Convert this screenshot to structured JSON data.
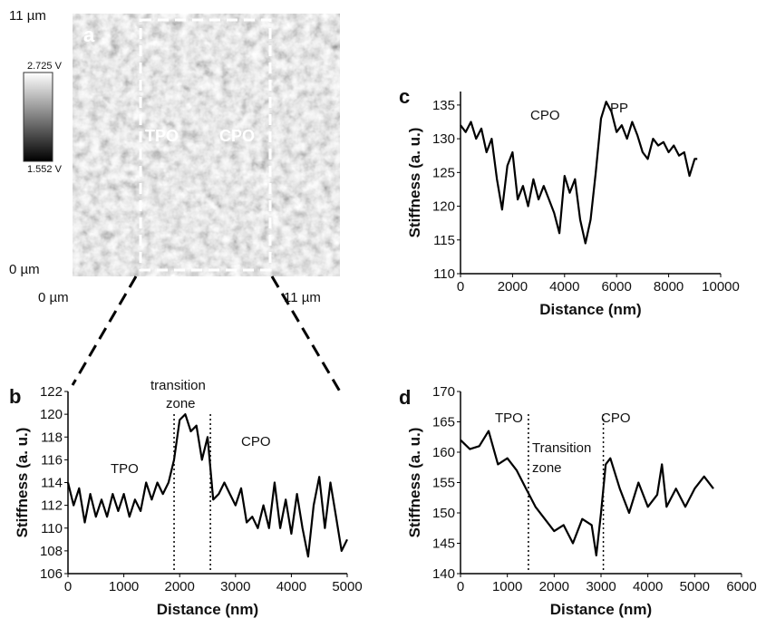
{
  "image_panel": {
    "label": "a",
    "y_top": "11 µm",
    "y_bottom": "0 µm",
    "x_left": "0 µm",
    "x_right": "11 µm",
    "colorbar_max": "2.725 V",
    "colorbar_min": "1.552 V",
    "regions": [
      "TPO",
      "CPO"
    ]
  },
  "chart_data": [
    {
      "type": "line",
      "panel": "b",
      "xlabel": "Distance (nm)",
      "ylabel": "Stiffness (a. u.)",
      "x": [
        0,
        100,
        200,
        300,
        400,
        500,
        600,
        700,
        800,
        900,
        1000,
        1100,
        1200,
        1300,
        1400,
        1500,
        1600,
        1700,
        1800,
        1900,
        2000,
        2100,
        2200,
        2300,
        2400,
        2500,
        2600,
        2700,
        2800,
        2900,
        3000,
        3100,
        3200,
        3300,
        3400,
        3500,
        3600,
        3700,
        3800,
        3900,
        4000,
        4100,
        4200,
        4300,
        4400,
        4500,
        4600,
        4700,
        4800,
        4900,
        5000
      ],
      "series": [
        {
          "color": "#000000",
          "values": [
            114,
            112,
            113.5,
            110.5,
            113,
            111,
            112.5,
            111,
            113,
            111.5,
            113,
            111,
            112.5,
            111.5,
            114,
            112.5,
            114,
            113,
            114,
            116,
            119.5,
            120,
            118.5,
            119,
            116,
            118,
            112.5,
            113,
            114,
            113,
            112,
            113.5,
            110.5,
            111,
            110,
            112,
            110,
            114,
            110,
            112.5,
            109.5,
            113,
            110,
            107.5,
            112,
            114.5,
            110,
            114,
            111,
            108,
            109
          ]
        }
      ],
      "vlines": [
        1900,
        2550
      ],
      "annotations": [
        "transition",
        "zone",
        "TPO",
        "CPO"
      ],
      "xlim": [
        0,
        5000
      ],
      "xticks": [
        0,
        1000,
        2000,
        3000,
        4000,
        5000
      ],
      "ylim": [
        106,
        122
      ],
      "yticks": [
        106,
        108,
        110,
        112,
        114,
        116,
        118,
        120,
        122
      ]
    },
    {
      "type": "line",
      "panel": "c",
      "xlabel": "Distance (nm)",
      "ylabel": "Stiffness (a. u.)",
      "x": [
        0,
        200,
        400,
        600,
        800,
        1000,
        1200,
        1400,
        1600,
        1800,
        2000,
        2200,
        2400,
        2600,
        2800,
        3000,
        3200,
        3400,
        3600,
        3800,
        4000,
        4200,
        4400,
        4600,
        4800,
        5000,
        5200,
        5400,
        5600,
        5800,
        6000,
        6200,
        6400,
        6600,
        6800,
        7000,
        7200,
        7400,
        7600,
        7800,
        8000,
        8200,
        8400,
        8600,
        8800,
        9000,
        9100
      ],
      "series": [
        {
          "color": "#000000",
          "values": [
            132,
            131,
            132.5,
            130,
            131.5,
            128,
            130,
            124,
            119.5,
            126,
            128,
            121,
            123,
            120,
            124,
            121,
            123,
            121,
            119,
            116,
            124.5,
            122,
            124,
            118,
            114.5,
            118,
            125,
            133,
            135.5,
            134,
            131,
            132,
            130,
            132.5,
            130.5,
            128,
            127,
            130,
            129,
            129.5,
            128,
            129,
            127.5,
            128,
            124.5,
            127,
            127
          ]
        }
      ],
      "annotations": [
        "CPO",
        "PP"
      ],
      "xlim": [
        0,
        10000
      ],
      "xticks": [
        0,
        2000,
        4000,
        6000,
        8000,
        10000
      ],
      "ylim": [
        110,
        137
      ],
      "yticks": [
        110,
        115,
        120,
        125,
        130,
        135
      ]
    },
    {
      "type": "line",
      "panel": "d",
      "xlabel": "Distance (nm)",
      "ylabel": "Stiffness (a. u.)",
      "x": [
        0,
        200,
        400,
        600,
        800,
        1000,
        1200,
        1400,
        1600,
        1800,
        2000,
        2200,
        2400,
        2600,
        2800,
        2900,
        3000,
        3100,
        3200,
        3400,
        3600,
        3800,
        4000,
        4200,
        4300,
        4400,
        4600,
        4800,
        5000,
        5200,
        5400
      ],
      "series": [
        {
          "color": "#000000",
          "values": [
            162,
            160.5,
            161,
            163.5,
            158,
            159,
            157,
            154,
            151,
            149,
            147,
            148,
            145,
            149,
            148,
            143,
            150,
            158,
            159,
            154,
            150,
            155,
            151,
            153,
            158,
            151,
            154,
            151,
            154,
            156,
            154
          ]
        }
      ],
      "vlines": [
        1450,
        3050
      ],
      "annotations": [
        "TPO",
        "Transition",
        "zone",
        "CPO"
      ],
      "xlim": [
        0,
        6000
      ],
      "xticks": [
        0,
        1000,
        2000,
        3000,
        4000,
        5000,
        6000
      ],
      "ylim": [
        140,
        170
      ],
      "yticks": [
        140,
        145,
        150,
        155,
        160,
        165,
        170
      ]
    }
  ]
}
